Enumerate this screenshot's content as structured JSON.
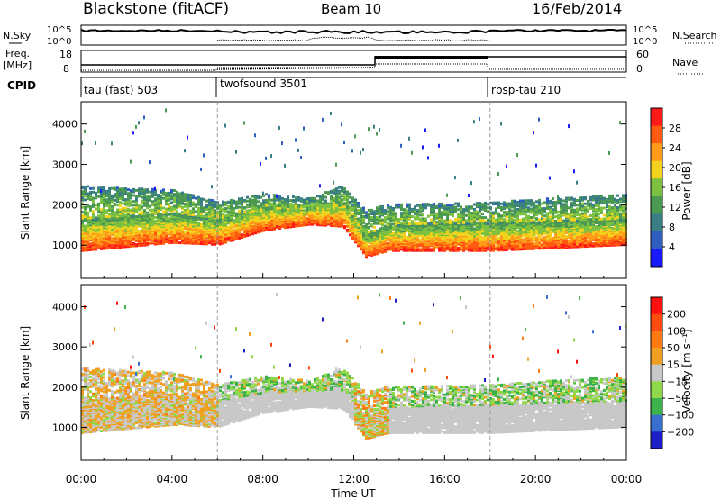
{
  "header": {
    "site": "Blackstone (fitACF)",
    "beam": "Beam 10",
    "date": "16/Feb/2014"
  },
  "panels": {
    "nsky": {
      "label": "N.Sky",
      "right_label": "N.Search",
      "ticks": [
        "10^5",
        "10^0"
      ]
    },
    "freq": {
      "label_top": "Freq.",
      "label_unit": "[MHz]",
      "ticks": [
        "18",
        "8"
      ],
      "right_label": "Nave",
      "right_ticks": [
        "60",
        "0"
      ]
    },
    "cpid": {
      "label": "CPID",
      "segments": [
        {
          "name": "tau (fast) 503",
          "start_hour": 0
        },
        {
          "name": "twofsound 3501",
          "start_hour": 6
        },
        {
          "name": "rbsp-tau 210",
          "start_hour": 18
        }
      ]
    }
  },
  "chart_data": [
    {
      "type": "heatmap",
      "name": "power",
      "ylabel": "Slant Range [km]",
      "xlabel": "Time UT",
      "x_ticks": [
        "00:00",
        "04:00",
        "08:00",
        "12:00",
        "16:00",
        "20:00",
        "00:00"
      ],
      "x_range_hours": [
        0,
        24
      ],
      "y_ticks": [
        1000,
        2000,
        3000,
        4000
      ],
      "ylim": [
        180,
        4550
      ],
      "colorbar": {
        "label": "Power [dB]",
        "ticks": [
          4,
          8,
          12,
          16,
          20,
          24,
          28
        ],
        "range": [
          0,
          32
        ],
        "colors": [
          "#1a1aff",
          "#2e5fc0",
          "#3a7f84",
          "#4c9a52",
          "#7cc240",
          "#f2d21c",
          "#ff9b1a",
          "#ff5a10",
          "#ff1a1a"
        ]
      },
      "bands": [
        {
          "t": [
            0,
            4,
            6,
            8,
            10,
            11.5,
            12.5,
            13.5,
            18,
            24
          ],
          "low": [
            900,
            1100,
            1050,
            1400,
            1550,
            1500,
            750,
            900,
            900,
            1050
          ],
          "high": [
            1700,
            1850,
            1700,
            2000,
            2050,
            2100,
            1300,
            1550,
            1600,
            1700
          ],
          "level": 0.85
        },
        {
          "t": [
            0,
            4,
            6,
            8,
            10,
            11.5,
            12.5,
            13.5,
            18,
            24
          ],
          "low": [
            1700,
            1850,
            1700,
            1900,
            1950,
            1950,
            1300,
            1550,
            1600,
            1700
          ],
          "high": [
            2500,
            2400,
            2100,
            2300,
            2200,
            2500,
            1900,
            2050,
            2100,
            2300
          ],
          "level": 0.45
        }
      ]
    },
    {
      "type": "heatmap",
      "name": "velocity",
      "ylabel": "Slant Range [km]",
      "xlabel": "Time UT",
      "x_ticks": [
        "00:00",
        "04:00",
        "08:00",
        "12:00",
        "16:00",
        "20:00",
        "00:00"
      ],
      "x_range_hours": [
        0,
        24
      ],
      "y_ticks": [
        1000,
        2000,
        3000,
        4000
      ],
      "ylim": [
        180,
        4550
      ],
      "colorbar": {
        "label": "Velocity [m s⁻¹]",
        "ticks": [
          200,
          100,
          50,
          15,
          -15,
          -50,
          -100,
          -200
        ],
        "colors": [
          "#1e1ec8",
          "#3a6fd2",
          "#3cb24a",
          "#8fd84a",
          "#c8c8c8",
          "#f0a020",
          "#ff7a10",
          "#ff4a10",
          "#ff1010"
        ]
      }
    }
  ]
}
